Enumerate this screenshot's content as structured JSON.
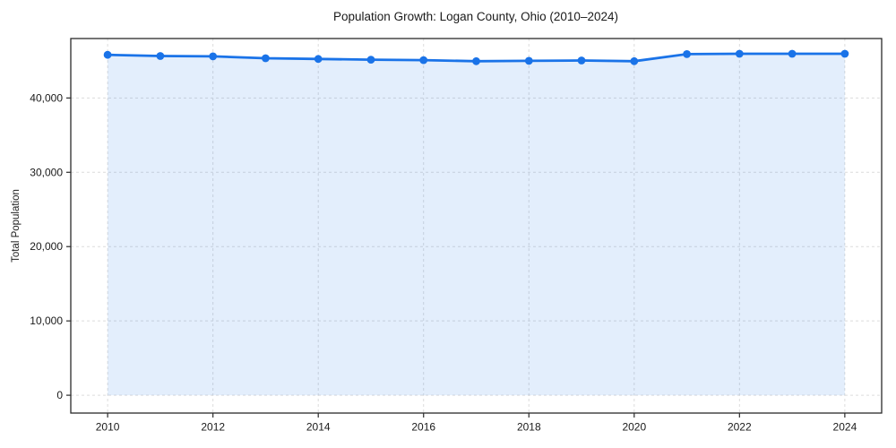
{
  "chart_data": {
    "type": "area",
    "title": "Population Growth: Logan County, Ohio (2010–2024)",
    "xlabel": "",
    "ylabel": "Total Population",
    "x": [
      2010,
      2011,
      2012,
      2013,
      2014,
      2015,
      2016,
      2017,
      2018,
      2019,
      2020,
      2021,
      2022,
      2023,
      2024
    ],
    "series": [
      {
        "name": "Total Population",
        "values": [
          45800,
          45650,
          45600,
          45350,
          45250,
          45150,
          45100,
          44950,
          45000,
          45050,
          44950,
          45900,
          45950,
          45950,
          45950
        ]
      }
    ],
    "x_ticks": [
      2010,
      2012,
      2014,
      2016,
      2018,
      2020,
      2022,
      2024
    ],
    "y_ticks": [
      0,
      10000,
      20000,
      30000,
      40000
    ],
    "xlim": [
      2009.3,
      2024.7
    ],
    "ylim": [
      -2400,
      48000
    ],
    "grid": true,
    "legend": false,
    "marker": "circle",
    "colors": {
      "line": "#1a73e8",
      "fill": "#1a73e8",
      "fill_opacity": 0.12,
      "grid": "#dcdcdc",
      "axis": "#2a2a2a",
      "text": "#1a1a1a",
      "background": "#ffffff"
    }
  }
}
